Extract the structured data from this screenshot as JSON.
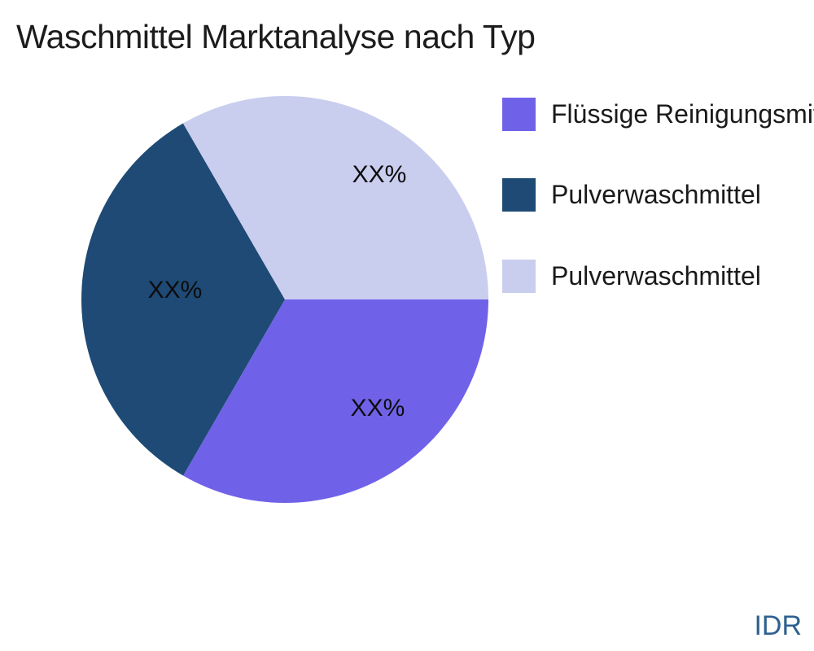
{
  "header": {
    "title": "Waschmittel Marktanalyse nach Typ"
  },
  "watermark": {
    "text": "IDR",
    "color": "#2E6191"
  },
  "chart_data": {
    "type": "pie",
    "title": "Waschmittel Marktanalyse nach Typ",
    "legend_position": "right",
    "start_angle_deg": 0,
    "direction": "clockwise",
    "grid": false,
    "slices": [
      {
        "label": "Flüssige Reinigungsmittel",
        "display_value": "XX%",
        "value_est_pct": 33.33,
        "color": "#7062E8"
      },
      {
        "label": "Pulverwaschmittel",
        "display_value": "XX%",
        "value_est_pct": 33.33,
        "color": "#1E4A75"
      },
      {
        "label": "Pulverwaschmittel",
        "display_value": "XX%",
        "value_est_pct": 33.34,
        "color": "#C9CDEE"
      }
    ]
  }
}
